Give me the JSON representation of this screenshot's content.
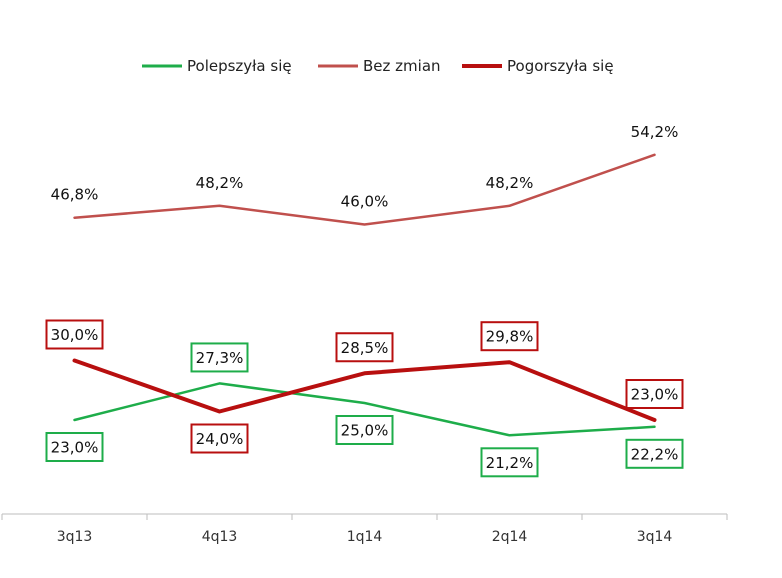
{
  "chart_data": {
    "type": "line",
    "title": "",
    "xlabel": "",
    "ylabel": "",
    "categories": [
      "3q13",
      "4q13",
      "1q14",
      "2q14",
      "3q14"
    ],
    "ylim": [
      0,
      70
    ],
    "grid": false,
    "legend_position": "top-center",
    "series": [
      {
        "name": "Polepszyła się",
        "color": "#1ead4a",
        "label_style": "boxed",
        "values": [
          23.0,
          27.3,
          25.0,
          21.2,
          22.2
        ],
        "labels": [
          "23,0%",
          "27,3%",
          "25,0%",
          "21,2%",
          "22,2%"
        ]
      },
      {
        "name": "Bez zmian",
        "color": "#c0504d",
        "label_style": "plain",
        "values": [
          46.8,
          48.2,
          46.0,
          48.2,
          54.2
        ],
        "labels": [
          "46,8%",
          "48,2%",
          "46,0%",
          "48,2%",
          "54,2%"
        ]
      },
      {
        "name": "Pogorszyła się",
        "color": "#b80f0f",
        "label_style": "boxed",
        "values": [
          30.0,
          24.0,
          28.5,
          29.8,
          23.0
        ],
        "labels": [
          "30,0%",
          "24,0%",
          "28,5%",
          "29,8%",
          "23,0%"
        ]
      }
    ]
  }
}
